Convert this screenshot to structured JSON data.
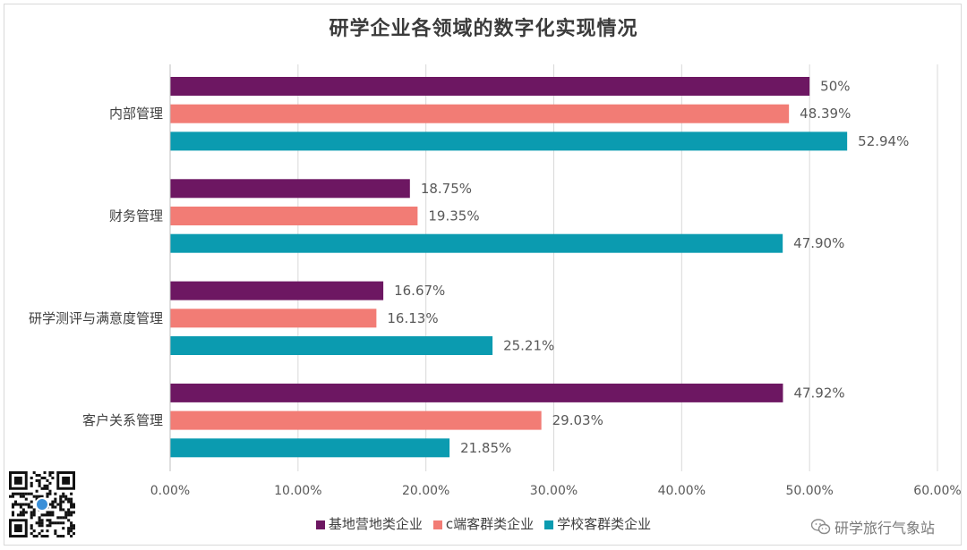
{
  "chart_data": {
    "type": "bar",
    "orientation": "horizontal",
    "title": "研学企业各领域的数字化实现情况",
    "categories": [
      "内部管理",
      "财务管理",
      "研学测评与满意度管理",
      "客户关系管理"
    ],
    "series": [
      {
        "name": "基地营地类企业",
        "color": "#6d1762",
        "values": [
          50,
          18.75,
          16.67,
          47.92
        ],
        "labels": [
          "50%",
          "18.75%",
          "16.67%",
          "47.92%"
        ]
      },
      {
        "name": "c端客群类企业",
        "color": "#f27c75",
        "values": [
          48.39,
          19.35,
          16.13,
          29.03
        ],
        "labels": [
          "48.39%",
          "19.35%",
          "16.13%",
          "29.03%"
        ]
      },
      {
        "name": "学校客群类企业",
        "color": "#0b9bb0",
        "values": [
          52.94,
          47.9,
          25.21,
          21.85
        ],
        "labels": [
          "52.94%",
          "47.90%",
          "25.21%",
          "21.85%"
        ]
      }
    ],
    "xlim": [
      0,
      60
    ],
    "xticks": [
      0,
      10,
      20,
      30,
      40,
      50,
      60
    ],
    "xtick_labels": [
      "0.00%",
      "10.00%",
      "20.00%",
      "30.00%",
      "40.00%",
      "50.00%",
      "60.00%"
    ],
    "grid": true,
    "legend_position": "bottom"
  },
  "watermark": {
    "text": "研学旅行气象站",
    "icon": "wechat-icon"
  },
  "qr_code": {
    "icon": "qr-code-icon"
  }
}
